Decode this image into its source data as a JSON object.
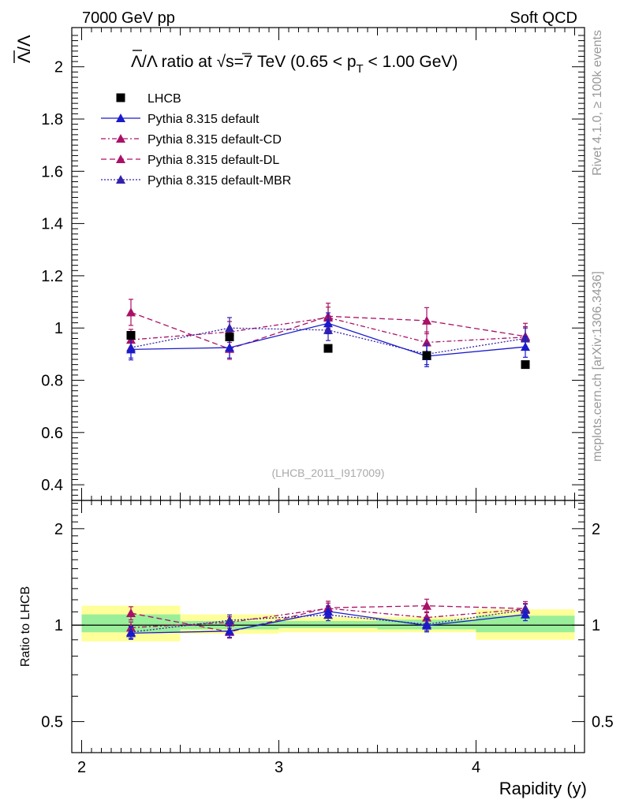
{
  "header": {
    "left_label": "7000 GeV pp",
    "right_label": "Soft QCD"
  },
  "side_labels": {
    "rivet": "Rivet 4.1.0, ≥ 100k events",
    "source": "mcplots.cern.ch [arXiv:1306.3436]"
  },
  "watermark": "(LHCB_2011_I917009)",
  "colors": {
    "data": "#000000",
    "default": "#1a1acc",
    "cd": "#aa1166",
    "dl": "#aa1166",
    "mbr": "#3322aa",
    "band_yellow": "#ffff99",
    "band_green": "#99ee99"
  },
  "chart_data": {
    "type": "scatter",
    "title": "Λ̅/Λ ratio at √s=7 TeV (0.65 < p_T < 1.00 GeV)",
    "title_parts": {
      "prefix": "Λ",
      "mid": "/Λ ratio at √",
      "energy": "s=7 TeV (0.65 < p",
      "sub": "T",
      "suffix": " < 1.00 GeV)"
    },
    "xlabel": "Rapidity (y)",
    "ylabel": "Λ̅/Λ",
    "ylabel_parts": {
      "num": "Λ",
      "rest": "/Λ"
    },
    "ratio_ylabel": "Ratio to LHCB",
    "xlim": [
      1.95,
      4.55
    ],
    "ylim": [
      0.34,
      2.15
    ],
    "ratio_ylim": [
      0.4,
      2.45
    ],
    "x_ticks": [
      2,
      3,
      4
    ],
    "x_tick_labels": [
      "2",
      "3",
      "4"
    ],
    "y_ticks": [
      0.4,
      0.6,
      0.8,
      1.0,
      1.2,
      1.4,
      1.6,
      1.8,
      2.0
    ],
    "y_tick_labels": [
      "0.4",
      "0.6",
      "0.8",
      "1",
      "1.2",
      "1.4",
      "1.6",
      "1.8",
      "2"
    ],
    "ratio_ticks": [
      0.5,
      1,
      2
    ],
    "ratio_tick_labels": [
      "0.5",
      "1",
      "2"
    ],
    "x": [
      2.25,
      2.75,
      3.25,
      3.75,
      4.25
    ],
    "bin_edges": [
      2.0,
      2.5,
      3.0,
      3.5,
      4.0,
      4.5
    ],
    "data_series": {
      "name": "LHCB",
      "values": [
        0.972,
        0.966,
        0.922,
        0.895,
        0.86
      ]
    },
    "series": [
      {
        "name": "Pythia 8.315 default",
        "style": "solid",
        "values": [
          0.918,
          0.925,
          1.018,
          0.892,
          0.928
        ],
        "errors": [
          0.04,
          0.04,
          0.04,
          0.04,
          0.04
        ],
        "ratio": [
          0.944,
          0.958,
          1.104,
          0.997,
          1.079
        ]
      },
      {
        "name": "Pythia 8.315 default-CD",
        "style": "dashdot",
        "values": [
          0.955,
          0.985,
          1.04,
          0.945,
          0.965
        ],
        "errors": [
          0.04,
          0.04,
          0.04,
          0.04,
          0.04
        ],
        "ratio": [
          0.982,
          1.02,
          1.128,
          1.056,
          1.122
        ]
      },
      {
        "name": "Pythia 8.315 default-DL",
        "style": "dashed",
        "values": [
          1.06,
          0.92,
          1.045,
          1.028,
          0.968
        ],
        "errors": [
          0.05,
          0.04,
          0.05,
          0.05,
          0.05
        ],
        "ratio": [
          1.09,
          0.952,
          1.133,
          1.149,
          1.126
        ]
      },
      {
        "name": "Pythia 8.315 default-MBR",
        "style": "dotted",
        "values": [
          0.925,
          1.0,
          0.992,
          0.9,
          0.96
        ],
        "errors": [
          0.04,
          0.04,
          0.04,
          0.04,
          0.04
        ],
        "ratio": [
          0.951,
          1.035,
          1.076,
          1.006,
          1.116
        ]
      }
    ],
    "ratio_band_yellow": [
      [
        0.89,
        1.15
      ],
      [
        0.94,
        1.08
      ],
      [
        0.95,
        1.06
      ],
      [
        0.95,
        1.06
      ],
      [
        0.9,
        1.12
      ]
    ],
    "ratio_band_green": [
      [
        0.95,
        1.08
      ],
      [
        0.97,
        1.03
      ],
      [
        0.98,
        1.03
      ],
      [
        0.97,
        1.04
      ],
      [
        0.95,
        1.07
      ]
    ],
    "legend_position": "top-left"
  }
}
